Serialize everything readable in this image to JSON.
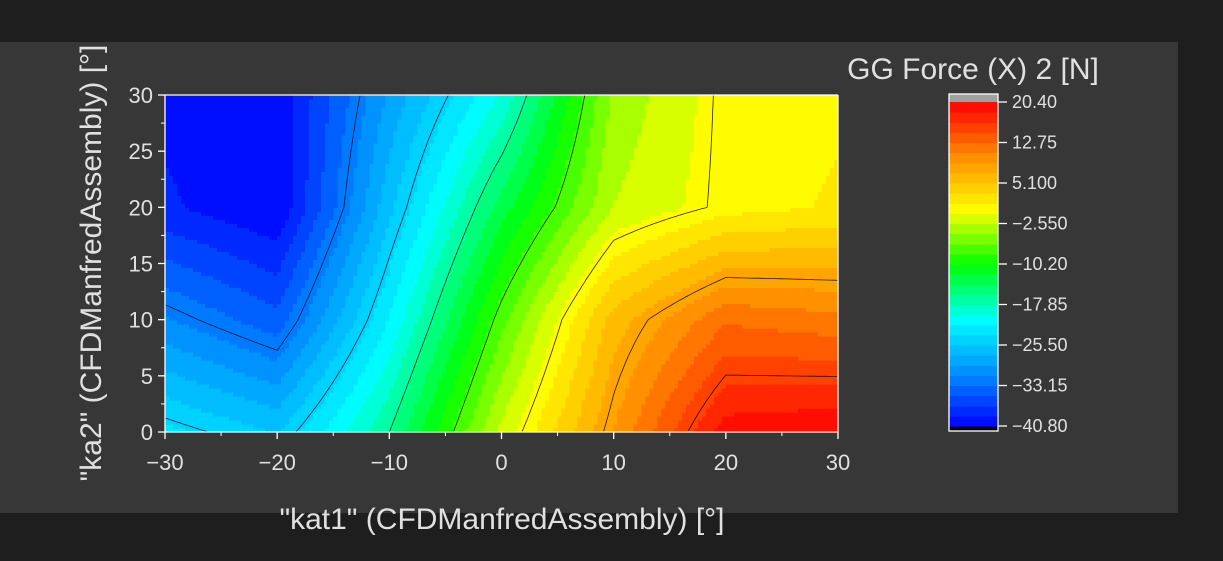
{
  "chart_data": {
    "type": "heatmap",
    "subtype": "filled-contour",
    "title": "GG Force (X) 2 [N]",
    "xlabel": "\"kat1\" (CFDManfredAssembly) [°]",
    "ylabel": "\"ka2\" (CFDManfredAssembly) [°]",
    "xlim": [
      -30,
      30
    ],
    "ylim": [
      0,
      30
    ],
    "x_ticks": [
      -30,
      -20,
      -10,
      0,
      10,
      20,
      30
    ],
    "y_ticks": [
      0,
      5,
      10,
      15,
      20,
      25,
      30
    ],
    "x_tick_labels": [
      "−30",
      "−20",
      "−10",
      "0",
      "10",
      "20",
      "30"
    ],
    "y_tick_labels": [
      "0",
      "5",
      "10",
      "15",
      "20",
      "25",
      "30"
    ],
    "x": [
      -30,
      -20,
      -10,
      0,
      10,
      20,
      30
    ],
    "y": [
      0,
      10,
      20,
      30
    ],
    "z": [
      [
        -23.0,
        -25.6,
        -16.0,
        -2.0,
        9.0,
        19.6,
        20.4
      ],
      [
        -31.0,
        -34.4,
        -21.5,
        -7.0,
        6.0,
        12.5,
        11.5
      ],
      [
        -38.5,
        -40.8,
        -26.0,
        -13.0,
        -2.5,
        0.5,
        1.5
      ],
      [
        -39.5,
        -40.5,
        -29.0,
        -19.5,
        -4.0,
        0.5,
        1.0
      ]
    ],
    "contour_lines": [
      -32.0,
      -24.0,
      -16.0,
      -8.0,
      0.0,
      8.0,
      16.0
    ],
    "colorbar": {
      "min": -40.8,
      "max": 20.4,
      "ticks": [
        20.4,
        12.75,
        5.1,
        -2.55,
        -10.2,
        -17.85,
        -25.5,
        -33.15,
        -40.8
      ],
      "tick_labels": [
        "20.40",
        "12.75",
        "5.100",
        "−2.550",
        "−10.20",
        "−17.85",
        "−25.50",
        "−33.15",
        "−40.80"
      ],
      "colormap": [
        "#0000ff",
        "#0090ff",
        "#00ffff",
        "#00ff00",
        "#ffff00",
        "#ff8c00",
        "#ff0000"
      ],
      "over_color": "#a0a0a0",
      "under_color": "#000000"
    },
    "grid": false
  },
  "colors": {
    "background": "#1e1e1e",
    "panel": "#373737",
    "text": "#e0e0e0",
    "axis": "#ffffff",
    "contour": "#000000"
  }
}
